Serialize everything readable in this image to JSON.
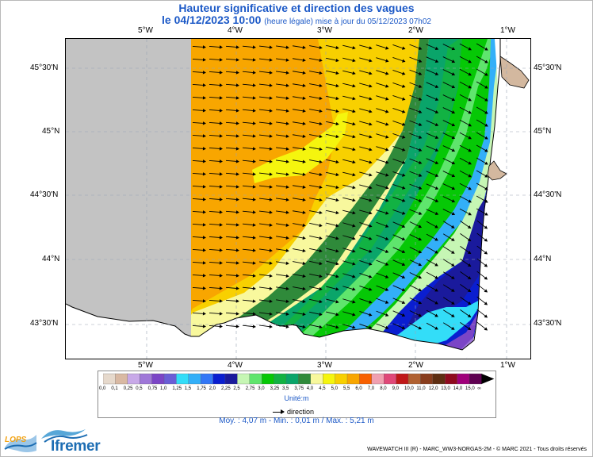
{
  "title": {
    "line1": "Hauteur significative et direction des vagues",
    "line2_main": "le 04/12/2023 10:00",
    "line2_detail": "(heure légale) mise à jour du 05/12/2023 07h02"
  },
  "map": {
    "lon_ticks": [
      "5°W",
      "4°W",
      "3°W",
      "2°W",
      "1°W"
    ],
    "lat_ticks": [
      "45°30'N",
      "45°N",
      "44°30'N",
      "44°N",
      "43°30'N"
    ],
    "extent": {
      "lon": [
        -5.9,
        -0.7
      ],
      "lat": [
        43.2,
        45.7
      ]
    },
    "land_color": "#d3b89f",
    "no_data_color": "#c3c3c3",
    "arrow_color": "#000000"
  },
  "colorbar": {
    "labels": [
      "0,0",
      "0,1",
      "0,25",
      "0,5",
      "0,75",
      "1,0",
      "1,25",
      "1,5",
      "1,75",
      "2,0",
      "2,25",
      "2,5",
      "2,75",
      "3,0",
      "3,25",
      "3,5",
      "3,75",
      "4,0",
      "4,5",
      "5,0",
      "5,5",
      "6,0",
      "7,0",
      "8,0",
      "9,0",
      "10,0",
      "11,0",
      "12,0",
      "13,0",
      "14,0",
      "15,0",
      "∞"
    ],
    "colors": [
      "#e6d9cc",
      "#d9b9a3",
      "#c8a9e8",
      "#9f77d8",
      "#7b45c6",
      "#6a5ed6",
      "#33ddf8",
      "#33aff8",
      "#3377f6",
      "#0a1ed0",
      "#1a1a9c",
      "#c6f6b4",
      "#5fe56d",
      "#06c806",
      "#12b243",
      "#0aa56a",
      "#2f8a3a",
      "#f8f89d",
      "#f5f50e",
      "#f8d000",
      "#f8a600",
      "#f86000",
      "#f0a0b0",
      "#e04878",
      "#c01818",
      "#b06030",
      "#883c1c",
      "#5e2e12",
      "#8f0a1e",
      "#a0007a",
      "#5e0050"
    ],
    "unit": "Unité:m",
    "direction_label": "direction"
  },
  "stats": "Moy. : 4,07 m   -   Min. : 0,01 m / Max. : 5,21 m",
  "logos": {
    "lops": "LOPS",
    "ifremer": "Ifremer"
  },
  "footer": "WAVEWATCH III (R) - MARC_WW3-NORGAS-2M - © MARC 2021 - Tous droits réservés"
}
